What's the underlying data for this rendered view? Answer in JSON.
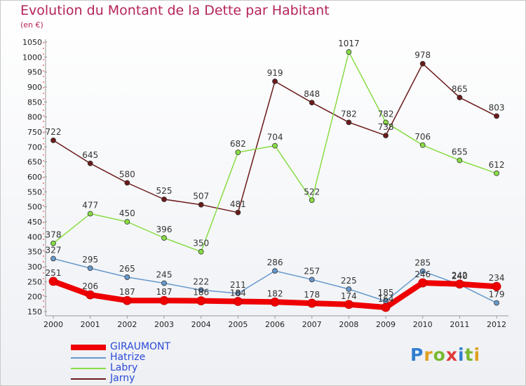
{
  "chart_data": {
    "type": "line",
    "title": "Evolution du Montant de la Dette par Habitant",
    "subtitle": "(en €)",
    "xlabel": "",
    "ylabel": "",
    "categories": [
      "2000",
      "2001",
      "2002",
      "2003",
      "2004",
      "2005",
      "2006",
      "2007",
      "2008",
      "2009",
      "2010",
      "2011",
      "2012"
    ],
    "ylim": [
      150,
      1050
    ],
    "yticks": [
      150,
      200,
      250,
      300,
      350,
      400,
      450,
      500,
      550,
      600,
      650,
      700,
      750,
      800,
      850,
      900,
      950,
      1000,
      1050
    ],
    "grid": false,
    "legend_position": "bottom-left",
    "series": [
      {
        "name": "GIRAUMONT",
        "color": "#ee0000",
        "emphasis": true,
        "values": [
          251,
          206,
          187,
          187,
          186,
          184,
          182,
          178,
          174,
          164,
          246,
          242,
          234
        ]
      },
      {
        "name": "Hatrize",
        "color": "#6699cc",
        "emphasis": false,
        "values": [
          327,
          295,
          265,
          245,
          222,
          211,
          286,
          257,
          225,
          185,
          285,
          240,
          179
        ]
      },
      {
        "name": "Labry",
        "color": "#88dd44",
        "emphasis": false,
        "values": [
          378,
          477,
          450,
          396,
          350,
          682,
          704,
          522,
          1017,
          782,
          706,
          655,
          612
        ]
      },
      {
        "name": "Jarny",
        "color": "#6b1a1a",
        "emphasis": false,
        "values": [
          722,
          645,
          580,
          525,
          507,
          481,
          919,
          848,
          782,
          738,
          978,
          865,
          803
        ]
      }
    ],
    "data_labels": {
      "GIRAUMONT": [
        "251",
        "206",
        "187",
        "187",
        "186",
        "184",
        "182",
        "178",
        "174",
        "164",
        "246",
        "242",
        "234"
      ],
      "Hatrize": [
        "327",
        "295",
        "265",
        "245",
        "222",
        "211",
        "286",
        "257",
        "225",
        "185",
        "285",
        "240",
        "179"
      ],
      "Labry": [
        "378",
        "477",
        "450",
        "396",
        "350",
        "682",
        "704",
        "522",
        "1017",
        "782",
        "706",
        "655",
        "612"
      ],
      "Jarny": [
        "722",
        "645",
        "580",
        "525",
        "507",
        "481",
        "919",
        "848",
        "782",
        "738",
        "978",
        "865",
        "803"
      ]
    }
  },
  "brand": {
    "text": "Proxiti"
  }
}
